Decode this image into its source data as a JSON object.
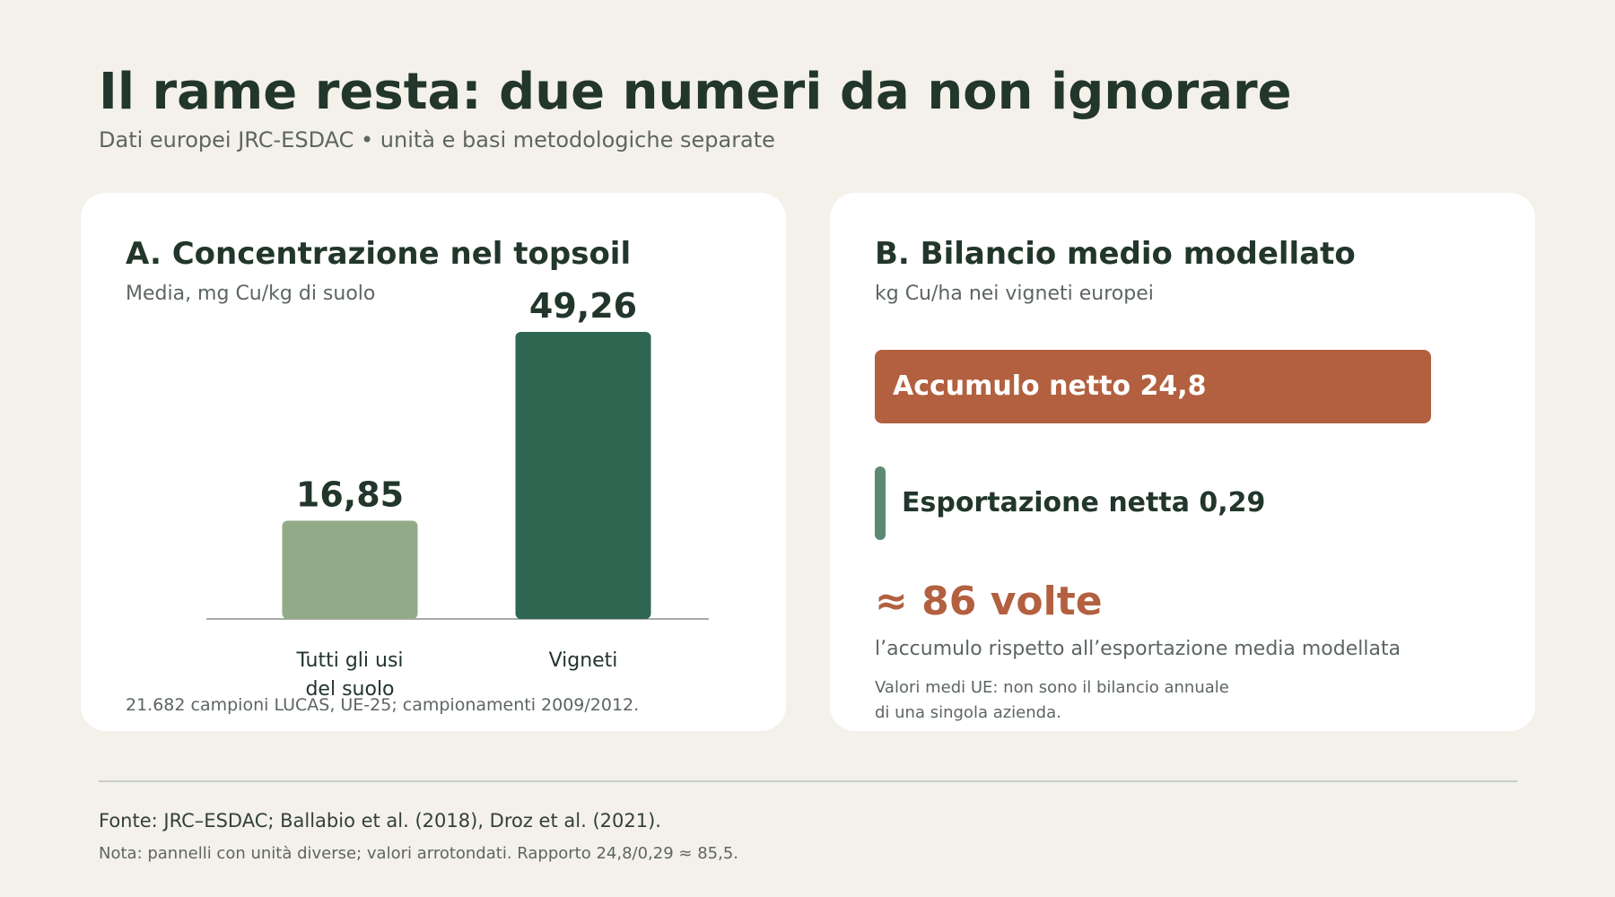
{
  "header": {
    "title": "Il rame resta: due numeri da non ignorare",
    "subtitle": "Dati europei JRC-ESDAC • unità e basi metodologiche separate"
  },
  "panel_a": {
    "title": "A. Concentrazione nel topsoil",
    "subtitle": "Media, mg Cu/kg di suolo",
    "note": "21.682 campioni LUCAS, UE-25; campionamenti 2009/2012."
  },
  "panel_b": {
    "title": "B. Bilancio medio modellato",
    "subtitle": "kg Cu/ha nei vigneti europei",
    "ratio": "≈ 86 volte",
    "ratio_desc": "l’accumulo rispetto all’esportazione media modellata",
    "note_line1": "Valori medi UE: non sono il bilancio annuale",
    "note_line2": "di una singola azienda."
  },
  "footer": {
    "source": "Fonte: JRC–ESDAC; Ballabio et al. (2018), Droz et al. (2021).",
    "note": "Nota: pannelli con unità diverse; valori arrotondati. Rapporto 24,8/0,29 ≈ 85,5."
  },
  "chart_data": [
    {
      "type": "bar",
      "title": "A. Concentrazione nel topsoil",
      "ylabel": "Media, mg Cu/kg di suolo",
      "categories": [
        [
          "Tutti gli usi",
          "del suolo"
        ],
        [
          "Vigneti"
        ]
      ],
      "values": [
        16.85,
        49.26
      ],
      "value_labels": [
        "16,85",
        "49,26"
      ],
      "colors": [
        "#93aa88",
        "#2f6652"
      ],
      "ylim": [
        0,
        49.26
      ],
      "grid": false
    },
    {
      "type": "bar",
      "orientation": "horizontal",
      "title": "B. Bilancio medio modellato",
      "xlabel": "kg Cu/ha nei vigneti europei",
      "categories": [
        "Accumulo netto",
        "Esportazione netta"
      ],
      "values": [
        24.8,
        0.29
      ],
      "value_labels": [
        "Accumulo netto 24,8",
        "Esportazione netta 0,29"
      ],
      "colors": [
        "#b2603f",
        "#5b8a71"
      ],
      "grid": false
    }
  ]
}
